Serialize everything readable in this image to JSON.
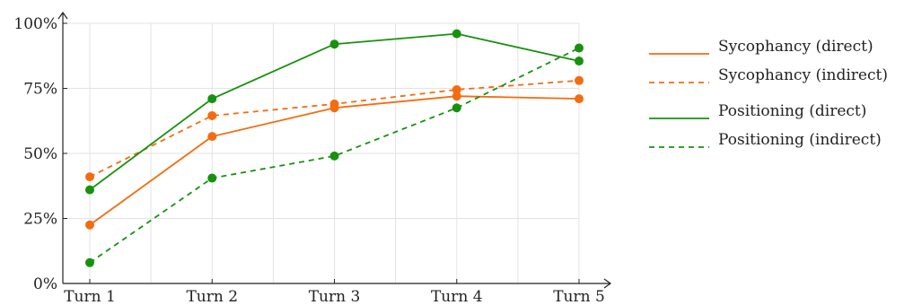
{
  "chart_data": {
    "type": "line",
    "title": "",
    "xlabel": "",
    "ylabel": "",
    "categories": [
      "Turn 1",
      "Turn 2",
      "Turn 3",
      "Turn 4",
      "Turn 5"
    ],
    "y_ticks": [
      "0%",
      "25%",
      "50%",
      "75%",
      "100%"
    ],
    "y_tick_values": [
      0,
      25,
      50,
      75,
      100
    ],
    "ylim": [
      0,
      100
    ],
    "grid": true,
    "legend_position": "right",
    "series": [
      {
        "name": "Sycophancy (direct)",
        "values": [
          22.5,
          56.5,
          67.5,
          72,
          71
        ],
        "color": "#f46c11",
        "dash": "solid"
      },
      {
        "name": "Sycophancy (indirect)",
        "values": [
          41,
          64.5,
          69,
          74.5,
          78
        ],
        "color": "#f46c11",
        "dash": "dashed"
      },
      {
        "name": "Positioning (direct)",
        "values": [
          36,
          71,
          92,
          96,
          85.5
        ],
        "color": "#17920f",
        "dash": "solid"
      },
      {
        "name": "Positioning (indirect)",
        "values": [
          8,
          40.5,
          49,
          67.5,
          90.5
        ],
        "color": "#17920f",
        "dash": "dashed"
      }
    ]
  }
}
